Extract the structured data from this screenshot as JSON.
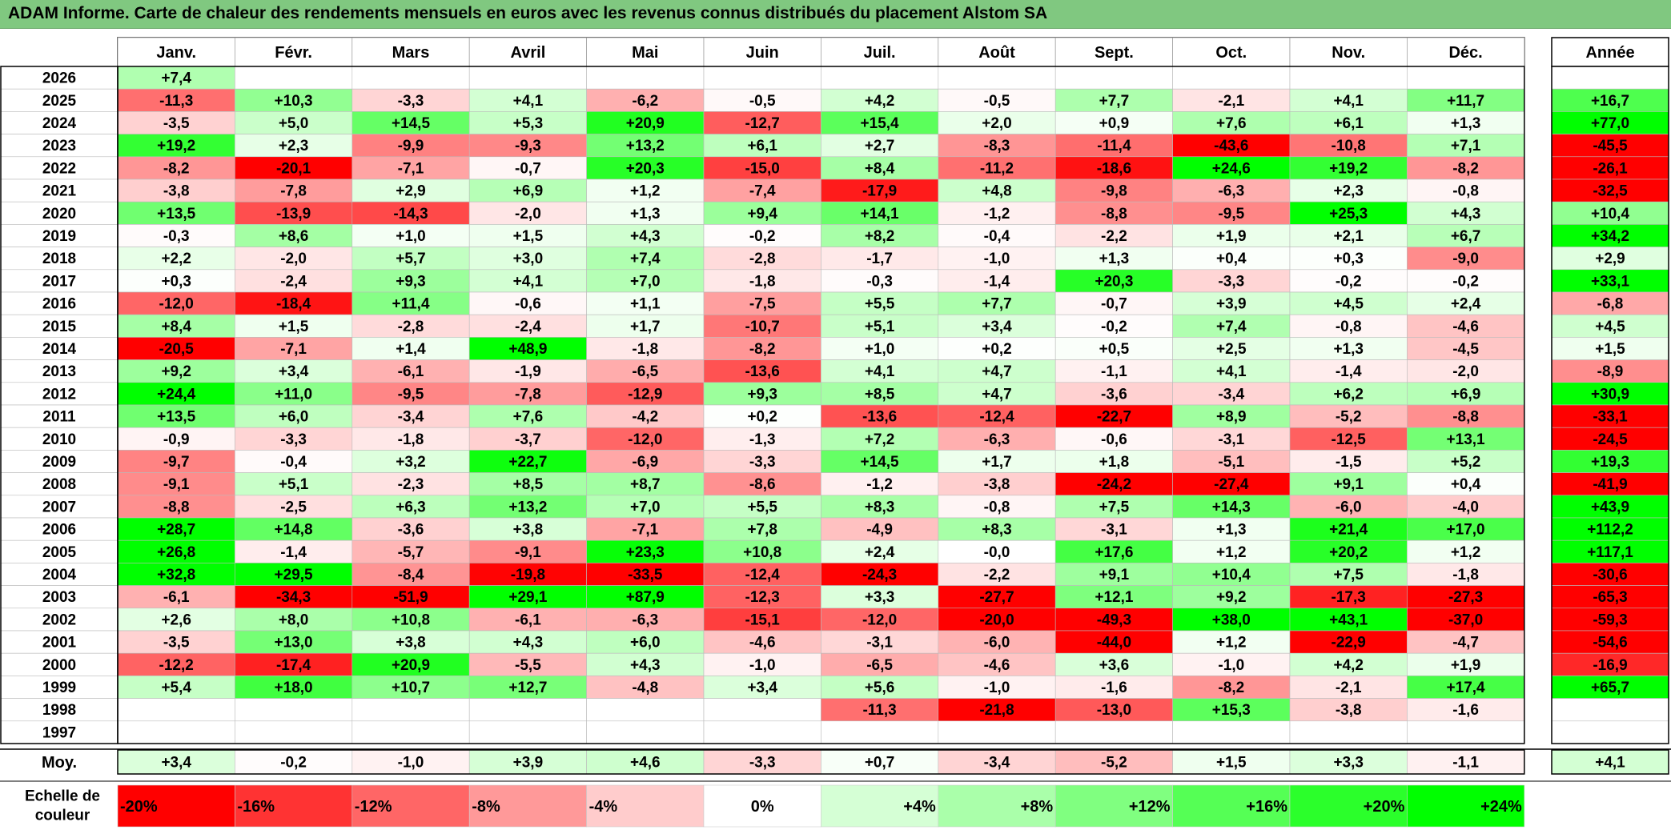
{
  "title": "ADAM Informe. Carte de chaleur des rendements mensuels en euros avec les revenus connus distribués du placement Alstom SA",
  "chart_data": {
    "type": "heatmap",
    "title": "ADAM Informe. Carte de chaleur des rendements mensuels en euros avec les revenus connus distribués du placement Alstom SA",
    "months": [
      "Janv.",
      "Févr.",
      "Mars",
      "Avril",
      "Mai",
      "Juin",
      "Juil.",
      "Août",
      "Sept.",
      "Oct.",
      "Nov.",
      "Déc."
    ],
    "year_header": "Année",
    "rows": [
      {
        "year": "2026",
        "values": [
          "+7,4",
          "",
          "",
          "",
          "",
          "",
          "",
          "",
          "",
          "",
          "",
          ""
        ],
        "annual": ""
      },
      {
        "year": "2025",
        "values": [
          "-11,3",
          "+10,3",
          "-3,3",
          "+4,1",
          "-6,2",
          "-0,5",
          "+4,2",
          "-0,5",
          "+7,7",
          "-2,1",
          "+4,1",
          "+11,7"
        ],
        "annual": "+16,7"
      },
      {
        "year": "2024",
        "values": [
          "-3,5",
          "+5,0",
          "+14,5",
          "+5,3",
          "+20,9",
          "-12,7",
          "+15,4",
          "+2,0",
          "+0,9",
          "+7,6",
          "+6,1",
          "+1,3"
        ],
        "annual": "+77,0"
      },
      {
        "year": "2023",
        "values": [
          "+19,2",
          "+2,3",
          "-9,9",
          "-9,3",
          "+13,2",
          "+6,1",
          "+2,7",
          "-8,3",
          "-11,4",
          "-43,6",
          "-10,8",
          "+7,1"
        ],
        "annual": "-45,5"
      },
      {
        "year": "2022",
        "values": [
          "-8,2",
          "-20,1",
          "-7,1",
          "-0,7",
          "+20,3",
          "-15,0",
          "+8,4",
          "-11,2",
          "-18,6",
          "+24,6",
          "+19,2",
          "-8,2"
        ],
        "annual": "-26,1"
      },
      {
        "year": "2021",
        "values": [
          "-3,8",
          "-7,8",
          "+2,9",
          "+6,9",
          "+1,2",
          "-7,4",
          "-17,9",
          "+4,8",
          "-9,8",
          "-6,3",
          "+2,3",
          "-0,8"
        ],
        "annual": "-32,5"
      },
      {
        "year": "2020",
        "values": [
          "+13,5",
          "-13,9",
          "-14,3",
          "-2,0",
          "+1,3",
          "+9,4",
          "+14,1",
          "-1,2",
          "-8,8",
          "-9,5",
          "+25,3",
          "+4,3"
        ],
        "annual": "+10,4"
      },
      {
        "year": "2019",
        "values": [
          "-0,3",
          "+8,6",
          "+1,0",
          "+1,5",
          "+4,3",
          "-0,2",
          "+8,2",
          "-0,4",
          "-2,2",
          "+1,9",
          "+2,1",
          "+6,7"
        ],
        "annual": "+34,2"
      },
      {
        "year": "2018",
        "values": [
          "+2,2",
          "-2,0",
          "+5,7",
          "+3,0",
          "+7,4",
          "-2,8",
          "-1,7",
          "-1,0",
          "+1,3",
          "+0,4",
          "+0,3",
          "-9,0"
        ],
        "annual": "+2,9"
      },
      {
        "year": "2017",
        "values": [
          "+0,3",
          "-2,4",
          "+9,3",
          "+4,1",
          "+7,0",
          "-1,8",
          "-0,3",
          "-1,4",
          "+20,3",
          "-3,3",
          "-0,2",
          "-0,2"
        ],
        "annual": "+33,1"
      },
      {
        "year": "2016",
        "values": [
          "-12,0",
          "-18,4",
          "+11,4",
          "-0,6",
          "+1,1",
          "-7,5",
          "+5,5",
          "+7,7",
          "-0,7",
          "+3,9",
          "+4,5",
          "+2,4"
        ],
        "annual": "-6,8"
      },
      {
        "year": "2015",
        "values": [
          "+8,4",
          "+1,5",
          "-2,8",
          "-2,4",
          "+1,7",
          "-10,7",
          "+5,1",
          "+3,4",
          "-0,2",
          "+7,4",
          "-0,8",
          "-4,6"
        ],
        "annual": "+4,5"
      },
      {
        "year": "2014",
        "values": [
          "-20,5",
          "-7,1",
          "+1,4",
          "+48,9",
          "-1,8",
          "-8,2",
          "+1,0",
          "+0,2",
          "+0,5",
          "+2,5",
          "+1,3",
          "-4,5"
        ],
        "annual": "+1,5"
      },
      {
        "year": "2013",
        "values": [
          "+9,2",
          "+3,4",
          "-6,1",
          "-1,9",
          "-6,5",
          "-13,6",
          "+4,1",
          "+4,7",
          "-1,1",
          "+4,1",
          "-1,4",
          "-2,0"
        ],
        "annual": "-8,9"
      },
      {
        "year": "2012",
        "values": [
          "+24,4",
          "+11,0",
          "-9,5",
          "-7,8",
          "-12,9",
          "+9,3",
          "+8,5",
          "+4,7",
          "-3,6",
          "-3,4",
          "+6,2",
          "+6,9"
        ],
        "annual": "+30,9"
      },
      {
        "year": "2011",
        "values": [
          "+13,5",
          "+6,0",
          "-3,4",
          "+7,6",
          "-4,2",
          "+0,2",
          "-13,6",
          "-12,4",
          "-22,7",
          "+8,9",
          "-5,2",
          "-8,8"
        ],
        "annual": "-33,1"
      },
      {
        "year": "2010",
        "values": [
          "-0,9",
          "-3,3",
          "-1,8",
          "-3,7",
          "-12,0",
          "-1,3",
          "+7,2",
          "-6,3",
          "-0,6",
          "-3,1",
          "-12,5",
          "+13,1"
        ],
        "annual": "-24,5"
      },
      {
        "year": "2009",
        "values": [
          "-9,7",
          "-0,4",
          "+3,2",
          "+22,7",
          "-6,9",
          "-3,3",
          "+14,5",
          "+1,7",
          "+1,8",
          "-5,1",
          "-1,5",
          "+5,2"
        ],
        "annual": "+19,3"
      },
      {
        "year": "2008",
        "values": [
          "-9,1",
          "+5,1",
          "-2,3",
          "+8,5",
          "+8,7",
          "-8,6",
          "-1,2",
          "-3,8",
          "-24,2",
          "-27,4",
          "+9,1",
          "+0,4"
        ],
        "annual": "-41,9"
      },
      {
        "year": "2007",
        "values": [
          "-8,8",
          "-2,5",
          "+6,3",
          "+13,2",
          "+7,0",
          "+5,5",
          "+8,3",
          "-0,8",
          "+7,5",
          "+14,3",
          "-6,0",
          "-4,0"
        ],
        "annual": "+43,9"
      },
      {
        "year": "2006",
        "values": [
          "+28,7",
          "+14,8",
          "-3,6",
          "+3,8",
          "-7,1",
          "+7,8",
          "-4,9",
          "+8,3",
          "-3,1",
          "+1,3",
          "+21,4",
          "+17,0"
        ],
        "annual": "+112,2"
      },
      {
        "year": "2005",
        "values": [
          "+26,8",
          "-1,4",
          "-5,7",
          "-9,1",
          "+23,3",
          "+10,8",
          "+2,4",
          "-0,0",
          "+17,6",
          "+1,2",
          "+20,2",
          "+1,2"
        ],
        "annual": "+117,1"
      },
      {
        "year": "2004",
        "values": [
          "+32,8",
          "+29,5",
          "-8,4",
          "-19,8",
          "-33,5",
          "-12,4",
          "-24,3",
          "-2,2",
          "+9,1",
          "+10,4",
          "+7,5",
          "-1,8"
        ],
        "annual": "-30,6"
      },
      {
        "year": "2003",
        "values": [
          "-6,1",
          "-34,3",
          "-51,9",
          "+29,1",
          "+87,9",
          "-12,3",
          "+3,3",
          "-27,7",
          "+12,1",
          "+9,2",
          "-17,3",
          "-27,3"
        ],
        "annual": "-65,3"
      },
      {
        "year": "2002",
        "values": [
          "+2,6",
          "+8,0",
          "+10,8",
          "-6,1",
          "-6,3",
          "-15,1",
          "-12,0",
          "-20,0",
          "-49,3",
          "+38,0",
          "+43,1",
          "-37,0"
        ],
        "annual": "-59,3"
      },
      {
        "year": "2001",
        "values": [
          "-3,5",
          "+13,0",
          "+3,8",
          "+4,3",
          "+6,0",
          "-4,6",
          "-3,1",
          "-6,0",
          "-44,0",
          "+1,2",
          "-22,9",
          "-4,7"
        ],
        "annual": "-54,6"
      },
      {
        "year": "2000",
        "values": [
          "-12,2",
          "-17,4",
          "+20,9",
          "-5,5",
          "+4,3",
          "-1,0",
          "-6,5",
          "-4,6",
          "+3,6",
          "-1,0",
          "+4,2",
          "+1,9"
        ],
        "annual": "-16,9"
      },
      {
        "year": "1999",
        "values": [
          "+5,4",
          "+18,0",
          "+10,7",
          "+12,7",
          "-4,8",
          "+3,4",
          "+5,6",
          "-1,0",
          "-1,6",
          "-8,2",
          "-2,1",
          "+17,4"
        ],
        "annual": "+65,7"
      },
      {
        "year": "1998",
        "values": [
          "",
          "",
          "",
          "",
          "",
          "",
          "-11,3",
          "-21,8",
          "-13,0",
          "+15,3",
          "-3,8",
          "-1,6"
        ],
        "annual": ""
      },
      {
        "year": "1997",
        "values": [
          "",
          "",
          "",
          "",
          "",
          "",
          "",
          "",
          "",
          "",
          "",
          ""
        ],
        "annual": ""
      }
    ],
    "average": {
      "label": "Moy.",
      "values": [
        "+3,4",
        "-0,2",
        "-1,0",
        "+3,9",
        "+4,6",
        "-3,3",
        "+0,7",
        "-3,4",
        "-5,2",
        "+1,5",
        "+3,3",
        "-1,1"
      ],
      "annual": "+4,1"
    },
    "scale": {
      "label_line1": "Echelle de",
      "label_line2": "couleur",
      "stops": [
        {
          "label": "-20%",
          "value": -20,
          "align": "left"
        },
        {
          "label": "-16%",
          "value": -16,
          "align": "left"
        },
        {
          "label": "-12%",
          "value": -12,
          "align": "left"
        },
        {
          "label": "-8%",
          "value": -8,
          "align": "left"
        },
        {
          "label": "-4%",
          "value": -4,
          "align": "left"
        },
        {
          "label": "0%",
          "value": 0,
          "align": "center"
        },
        {
          "label": "+4%",
          "value": 4,
          "align": "right"
        },
        {
          "label": "+8%",
          "value": 8,
          "align": "right"
        },
        {
          "label": "+12%",
          "value": 12,
          "align": "right"
        },
        {
          "label": "+16%",
          "value": 16,
          "align": "right"
        },
        {
          "label": "+20%",
          "value": 20,
          "align": "right"
        },
        {
          "label": "+24%",
          "value": 24,
          "align": "right"
        }
      ]
    },
    "colors": {
      "negative_max": "#ff0000",
      "positive_max": "#00ff00",
      "neutral": "#ffffff",
      "title_bar": "#80c880"
    },
    "color_range": [
      -20,
      24
    ]
  }
}
